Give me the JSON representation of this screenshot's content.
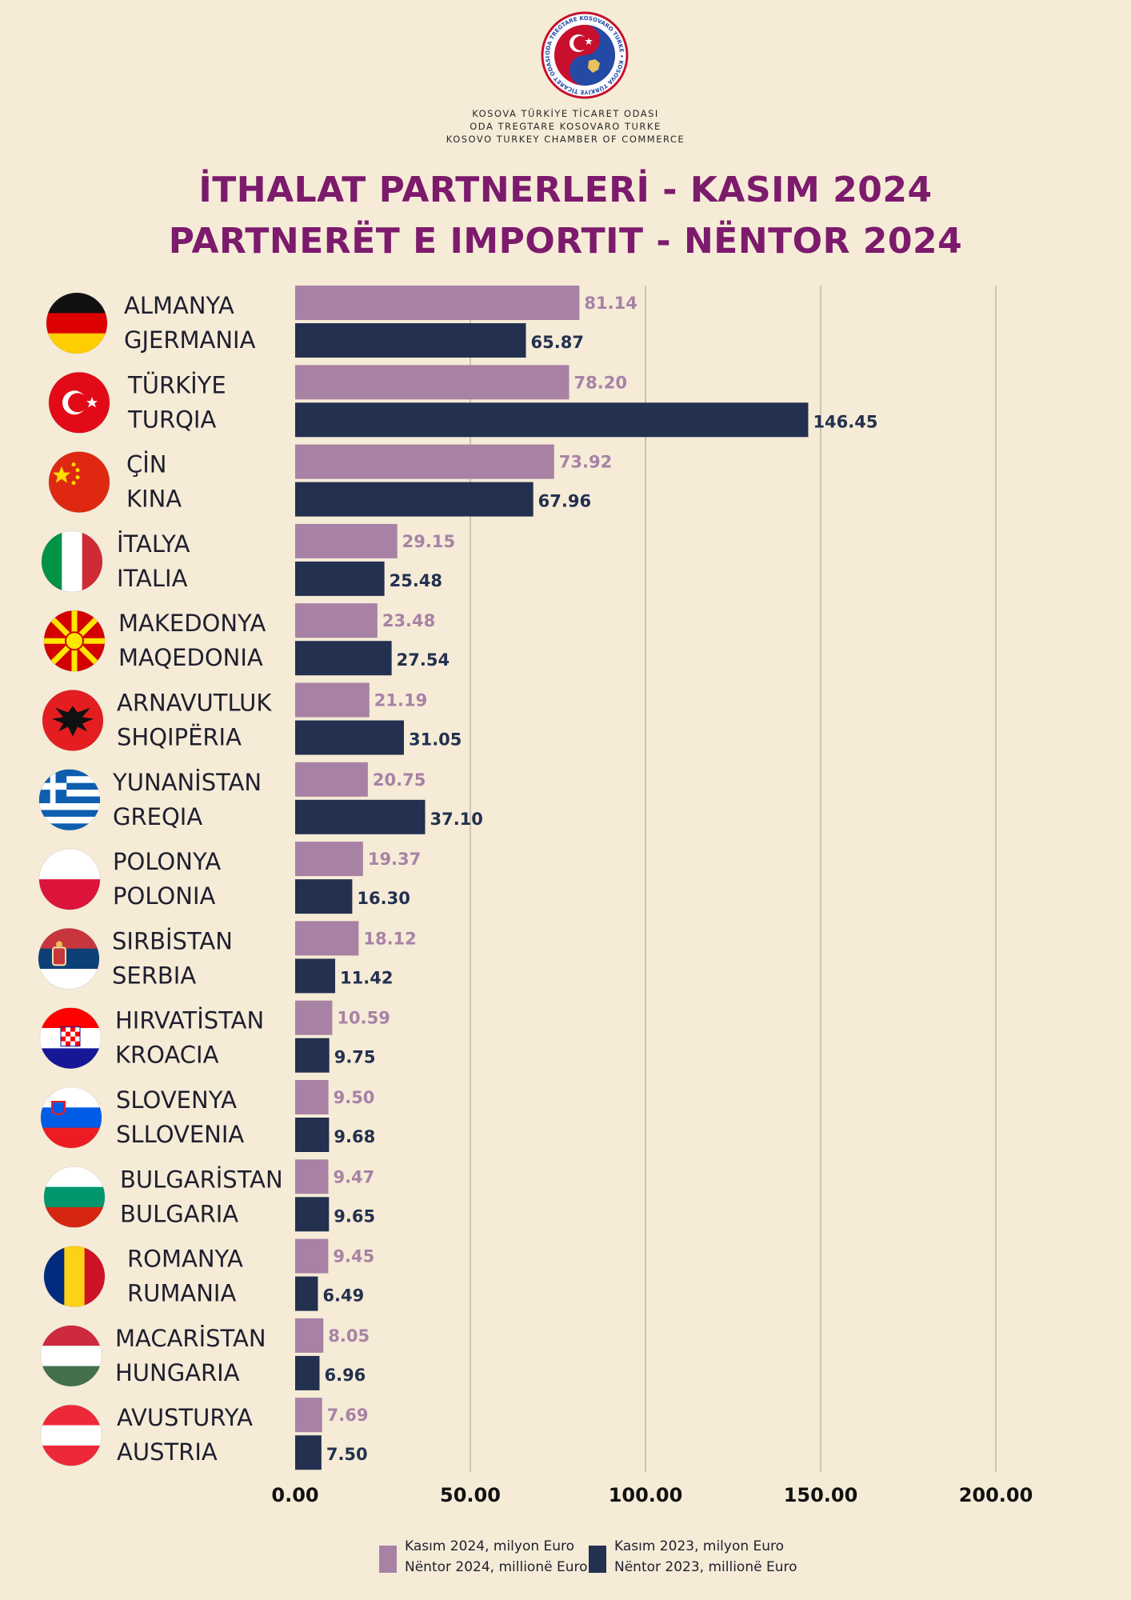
{
  "header": {
    "org_lines": [
      "KOSOVA TÜRKİYE TİCARET ODASI",
      "ODA TREGTARE KOSOVARO TURKE",
      "KOSOVO TURKEY CHAMBER OF COMMERCE"
    ],
    "logo_text": "ODA TREGTARE KOSOVARO TURKE • KOSOVA TÜRKİYE TİCARET ODASI"
  },
  "title_line1": "İTHALAT PARTNERLERİ - KASIM 2024",
  "title_line2": "PARTNERËT E IMPORTIT - NËNTOR 2024",
  "chart_data": {
    "type": "bar",
    "orientation": "horizontal",
    "categories": [
      {
        "tr": "ALMANYA",
        "sq": "GJERMANIA",
        "flag": "germany-flag-icon"
      },
      {
        "tr": "TÜRKİYE",
        "sq": "TURQIA",
        "flag": "turkey-flag-icon"
      },
      {
        "tr": "ÇİN",
        "sq": "KINA",
        "flag": "china-flag-icon"
      },
      {
        "tr": "İTALYA",
        "sq": "ITALIA",
        "flag": "italy-flag-icon"
      },
      {
        "tr": "MAKEDONYA",
        "sq": "MAQEDONIA",
        "flag": "north-macedonia-flag-icon"
      },
      {
        "tr": "ARNAVUTLUK",
        "sq": "SHQIPËRIA",
        "flag": "albania-flag-icon"
      },
      {
        "tr": "YUNANİSTAN",
        "sq": "GREQIA",
        "flag": "greece-flag-icon"
      },
      {
        "tr": "POLONYA",
        "sq": "POLONIA",
        "flag": "poland-flag-icon"
      },
      {
        "tr": "SIRBİSTAN",
        "sq": "SERBIA",
        "flag": "serbia-flag-icon"
      },
      {
        "tr": "HIRVATİSTAN",
        "sq": "KROACIA",
        "flag": "croatia-flag-icon"
      },
      {
        "tr": "SLOVENYA",
        "sq": "SLLOVENIA",
        "flag": "slovenia-flag-icon"
      },
      {
        "tr": "BULGARİSTAN",
        "sq": "BULGARIA",
        "flag": "bulgaria-flag-icon"
      },
      {
        "tr": "ROMANYA",
        "sq": "RUMANIA",
        "flag": "romania-flag-icon"
      },
      {
        "tr": "MACARİSTAN",
        "sq": "HUNGARIA",
        "flag": "hungary-flag-icon"
      },
      {
        "tr": "AVUSTURYA",
        "sq": "AUSTRIA",
        "flag": "austria-flag-icon"
      }
    ],
    "series": [
      {
        "name_line1": "Kasım 2024, milyon Euro",
        "name_line2": "Nëntor 2024, millionë Euro",
        "color": "#a882a4",
        "values": [
          81.14,
          78.2,
          73.92,
          29.15,
          23.48,
          21.19,
          20.75,
          19.37,
          18.12,
          10.59,
          9.5,
          9.47,
          9.45,
          8.05,
          7.69
        ],
        "labels": [
          "81.14",
          "78.20",
          "73.92",
          "29.15",
          "23.48",
          "21.19",
          "20.75",
          "19.37",
          "18.12",
          "10.59",
          "9.50",
          "9.47",
          "9.45",
          "8.05",
          "7.69"
        ]
      },
      {
        "name_line1": "Kasım 2023, milyon Euro",
        "name_line2": "Nëntor 2023, millionë Euro",
        "color": "#23304f",
        "values": [
          65.87,
          146.45,
          67.96,
          25.48,
          27.54,
          31.05,
          37.1,
          16.3,
          11.42,
          9.75,
          9.68,
          9.65,
          6.49,
          6.96,
          7.5
        ],
        "labels": [
          "65.87",
          "146.45",
          "67.96",
          "25.48",
          "27.54",
          "31.05",
          "37.10",
          "16.30",
          "11.42",
          "9.75",
          "9.68",
          "9.65",
          "6.49",
          "6.96",
          "7.50"
        ]
      }
    ],
    "xlim": [
      0,
      200
    ],
    "xticks": [
      "0.00",
      "50.00",
      "100.00",
      "150.00",
      "200.00"
    ],
    "xtick_values": [
      0,
      50,
      100,
      150,
      200
    ],
    "grid": "vertical",
    "legend_position": "bottom"
  }
}
